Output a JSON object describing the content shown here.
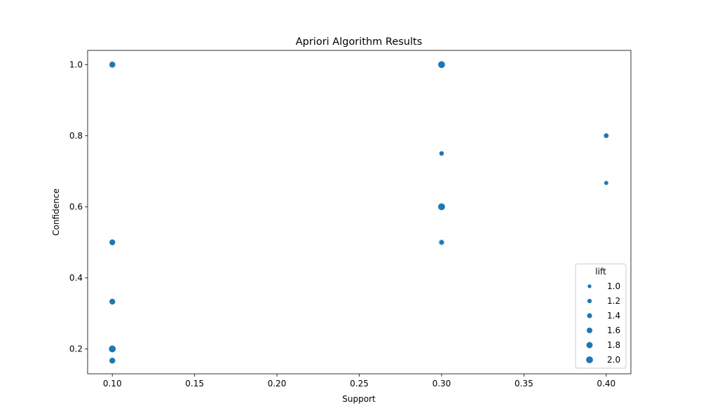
{
  "chart_data": {
    "type": "scatter",
    "title": "Apriori Algorithm Results",
    "xlabel": "Support",
    "ylabel": "Confidence",
    "xlim": [
      0.085,
      0.415
    ],
    "ylim": [
      0.13,
      1.04
    ],
    "xticks": [
      "0.10",
      "0.15",
      "0.20",
      "0.25",
      "0.30",
      "0.35",
      "0.40"
    ],
    "xtick_values": [
      0.1,
      0.15,
      0.2,
      0.25,
      0.3,
      0.35,
      0.4
    ],
    "yticks": [
      "0.2",
      "0.4",
      "0.6",
      "0.8",
      "1.0"
    ],
    "ytick_values": [
      0.2,
      0.4,
      0.6,
      0.8,
      1.0
    ],
    "grid": false,
    "color": "#1f77b4",
    "points": [
      {
        "support": 0.1,
        "confidence": 1.0,
        "lift": 2.0
      },
      {
        "support": 0.1,
        "confidence": 1.0,
        "lift": 1.67
      },
      {
        "support": 0.1,
        "confidence": 0.5,
        "lift": 1.67
      },
      {
        "support": 0.1,
        "confidence": 0.333,
        "lift": 1.67
      },
      {
        "support": 0.1,
        "confidence": 0.2,
        "lift": 2.0
      },
      {
        "support": 0.1,
        "confidence": 0.167,
        "lift": 1.67
      },
      {
        "support": 0.3,
        "confidence": 1.0,
        "lift": 1.67
      },
      {
        "support": 0.3,
        "confidence": 1.0,
        "lift": 2.0
      },
      {
        "support": 0.3,
        "confidence": 0.75,
        "lift": 1.25
      },
      {
        "support": 0.3,
        "confidence": 0.6,
        "lift": 2.0
      },
      {
        "support": 0.3,
        "confidence": 0.5,
        "lift": 1.67
      },
      {
        "support": 0.3,
        "confidence": 0.5,
        "lift": 1.25
      },
      {
        "support": 0.4,
        "confidence": 0.8,
        "lift": 1.33
      },
      {
        "support": 0.4,
        "confidence": 0.667,
        "lift": 1.11
      }
    ],
    "legend": {
      "title": "lift",
      "placement": "lower-right",
      "entries": [
        {
          "label": "1.0",
          "lift": 1.0
        },
        {
          "label": "1.2",
          "lift": 1.2
        },
        {
          "label": "1.4",
          "lift": 1.4
        },
        {
          "label": "1.6",
          "lift": 1.6
        },
        {
          "label": "1.8",
          "lift": 1.8
        },
        {
          "label": "2.0",
          "lift": 2.0
        }
      ]
    }
  }
}
